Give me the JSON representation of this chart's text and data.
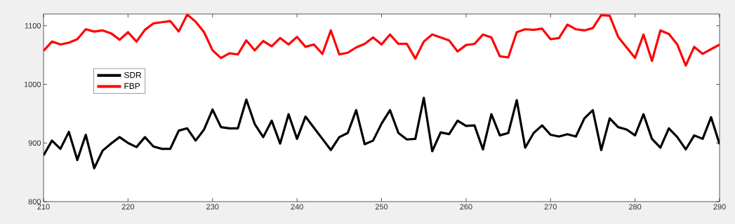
{
  "chart_data": {
    "type": "line",
    "x": [
      210,
      211,
      212,
      213,
      214,
      215,
      216,
      217,
      218,
      219,
      220,
      221,
      222,
      223,
      224,
      225,
      226,
      227,
      228,
      229,
      230,
      231,
      232,
      233,
      234,
      235,
      236,
      237,
      238,
      239,
      240,
      241,
      242,
      243,
      244,
      245,
      246,
      247,
      248,
      249,
      250,
      251,
      252,
      253,
      254,
      255,
      256,
      257,
      258,
      259,
      260,
      261,
      262,
      263,
      264,
      265,
      266,
      267,
      268,
      269,
      270,
      271,
      272,
      273,
      274,
      275,
      276,
      277,
      278,
      279,
      280,
      281,
      282,
      283,
      284,
      285,
      286,
      287,
      288,
      289,
      290
    ],
    "series": [
      {
        "name": "SDR",
        "color": "#000000",
        "values": [
          879,
          904,
          890,
          919,
          871,
          914,
          857,
          887,
          899,
          910,
          900,
          893,
          910,
          894,
          890,
          890,
          921,
          925,
          904,
          923,
          957,
          927,
          925,
          925,
          974,
          932,
          910,
          938,
          899,
          949,
          907,
          945,
          926,
          907,
          888,
          910,
          917,
          956,
          898,
          904,
          933,
          956,
          917,
          906,
          907,
          977,
          886,
          918,
          915,
          938,
          929,
          930,
          889,
          949,
          913,
          917,
          973,
          892,
          917,
          930,
          914,
          911,
          915,
          911,
          942,
          956,
          888,
          942,
          927,
          923,
          913,
          949,
          907,
          892,
          925,
          910,
          889,
          913,
          907,
          944,
          898
        ]
      },
      {
        "name": "FBP",
        "color": "#ff0000",
        "values": [
          1057,
          1073,
          1068,
          1071,
          1077,
          1094,
          1090,
          1092,
          1087,
          1076,
          1089,
          1073,
          1093,
          1104,
          1106,
          1108,
          1090,
          1119,
          1107,
          1089,
          1058,
          1045,
          1053,
          1051,
          1075,
          1058,
          1074,
          1065,
          1079,
          1068,
          1081,
          1064,
          1068,
          1052,
          1092,
          1051,
          1054,
          1063,
          1069,
          1080,
          1068,
          1085,
          1069,
          1069,
          1044,
          1073,
          1085,
          1080,
          1075,
          1056,
          1067,
          1069,
          1085,
          1080,
          1048,
          1046,
          1089,
          1094,
          1093,
          1095,
          1077,
          1079,
          1102,
          1094,
          1092,
          1096,
          1118,
          1117,
          1081,
          1063,
          1045,
          1085,
          1040,
          1092,
          1086,
          1068,
          1032,
          1064,
          1052,
          1060,
          1068
        ]
      }
    ],
    "xlim": [
      210,
      290
    ],
    "xticks": [
      210,
      220,
      230,
      240,
      250,
      260,
      270,
      280,
      290
    ],
    "ylim": [
      800,
      1120
    ],
    "yticks": [
      800,
      900,
      1000,
      1100
    ],
    "legend": "left",
    "marker": "none",
    "line_style": "solid"
  }
}
